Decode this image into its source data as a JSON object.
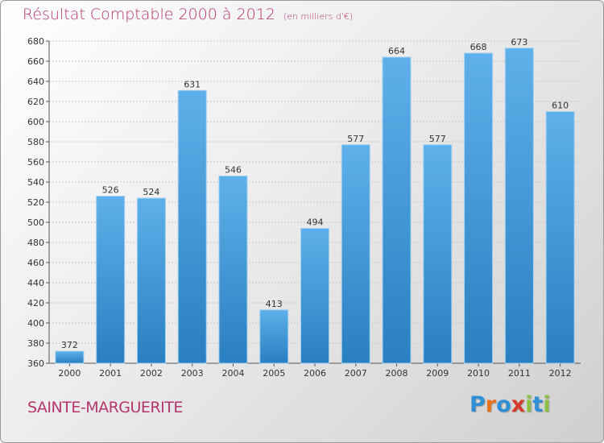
{
  "header": {
    "title": "Résultat Comptable 2000 à 2012",
    "subtitle": "(en milliers d'€)"
  },
  "footer": {
    "town": "SAINTE-MARGUERITE",
    "logo_letters": [
      "P",
      "r",
      "o",
      "x",
      "i",
      "t",
      "i"
    ],
    "logo_colors": [
      "#2f8fd6",
      "#e8731e",
      "#2f8fd6",
      "#d63b2a",
      "#8bc043",
      "#2f8fd6",
      "#8bc043"
    ]
  },
  "colors": {
    "title": "#b5366e",
    "bar_top": "#5fb0ea",
    "bar_bottom": "#2a7fc0"
  },
  "chart_data": {
    "type": "bar",
    "categories": [
      "2000",
      "2001",
      "2002",
      "2003",
      "2004",
      "2005",
      "2006",
      "2007",
      "2008",
      "2009",
      "2010",
      "2011",
      "2012"
    ],
    "values": [
      372,
      526,
      524,
      631,
      546,
      413,
      494,
      577,
      664,
      577,
      668,
      673,
      610
    ],
    "ylim": [
      360,
      680
    ],
    "yticks": [
      360,
      380,
      400,
      420,
      440,
      460,
      480,
      500,
      520,
      540,
      560,
      580,
      600,
      620,
      640,
      660,
      680
    ],
    "grid": true,
    "data_labels": true
  }
}
